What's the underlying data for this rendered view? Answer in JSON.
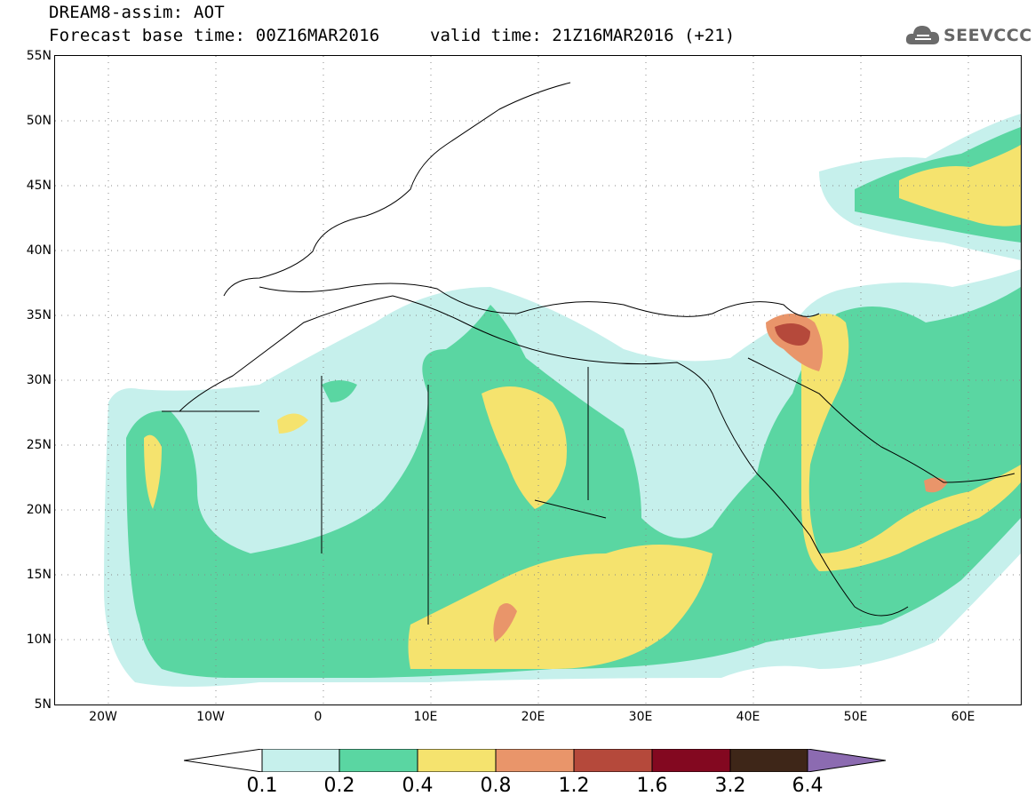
{
  "title": {
    "line1": "DREAM8-assim: AOT",
    "line2": "Forecast base time: 00Z16MAR2016",
    "valid": "valid time: 21Z16MAR2016 (+21)"
  },
  "logo": {
    "text": "SEEVCCC",
    "icon": "cloud-icon"
  },
  "map": {
    "lat_labels": [
      "55N",
      "50N",
      "45N",
      "40N",
      "35N",
      "30N",
      "25N",
      "20N",
      "15N",
      "10N",
      "5N"
    ],
    "lon_labels": [
      "20W",
      "10W",
      "0",
      "10E",
      "20E",
      "30E",
      "40E",
      "50E",
      "60E"
    ],
    "lat_range": [
      5,
      55
    ],
    "lon_range": [
      -25,
      65
    ],
    "grid": "dotted",
    "field": "AOT"
  },
  "legend": {
    "thresholds": [
      "0.1",
      "0.2",
      "0.4",
      "0.8",
      "1.2",
      "1.6",
      "3.2",
      "6.4"
    ],
    "colors": [
      "#ffffff",
      "#c6f0ec",
      "#5ad6a2",
      "#f5e36e",
      "#e9956a",
      "#b5493b",
      "#830820",
      "#3e2618",
      "#8c6bb1"
    ]
  }
}
